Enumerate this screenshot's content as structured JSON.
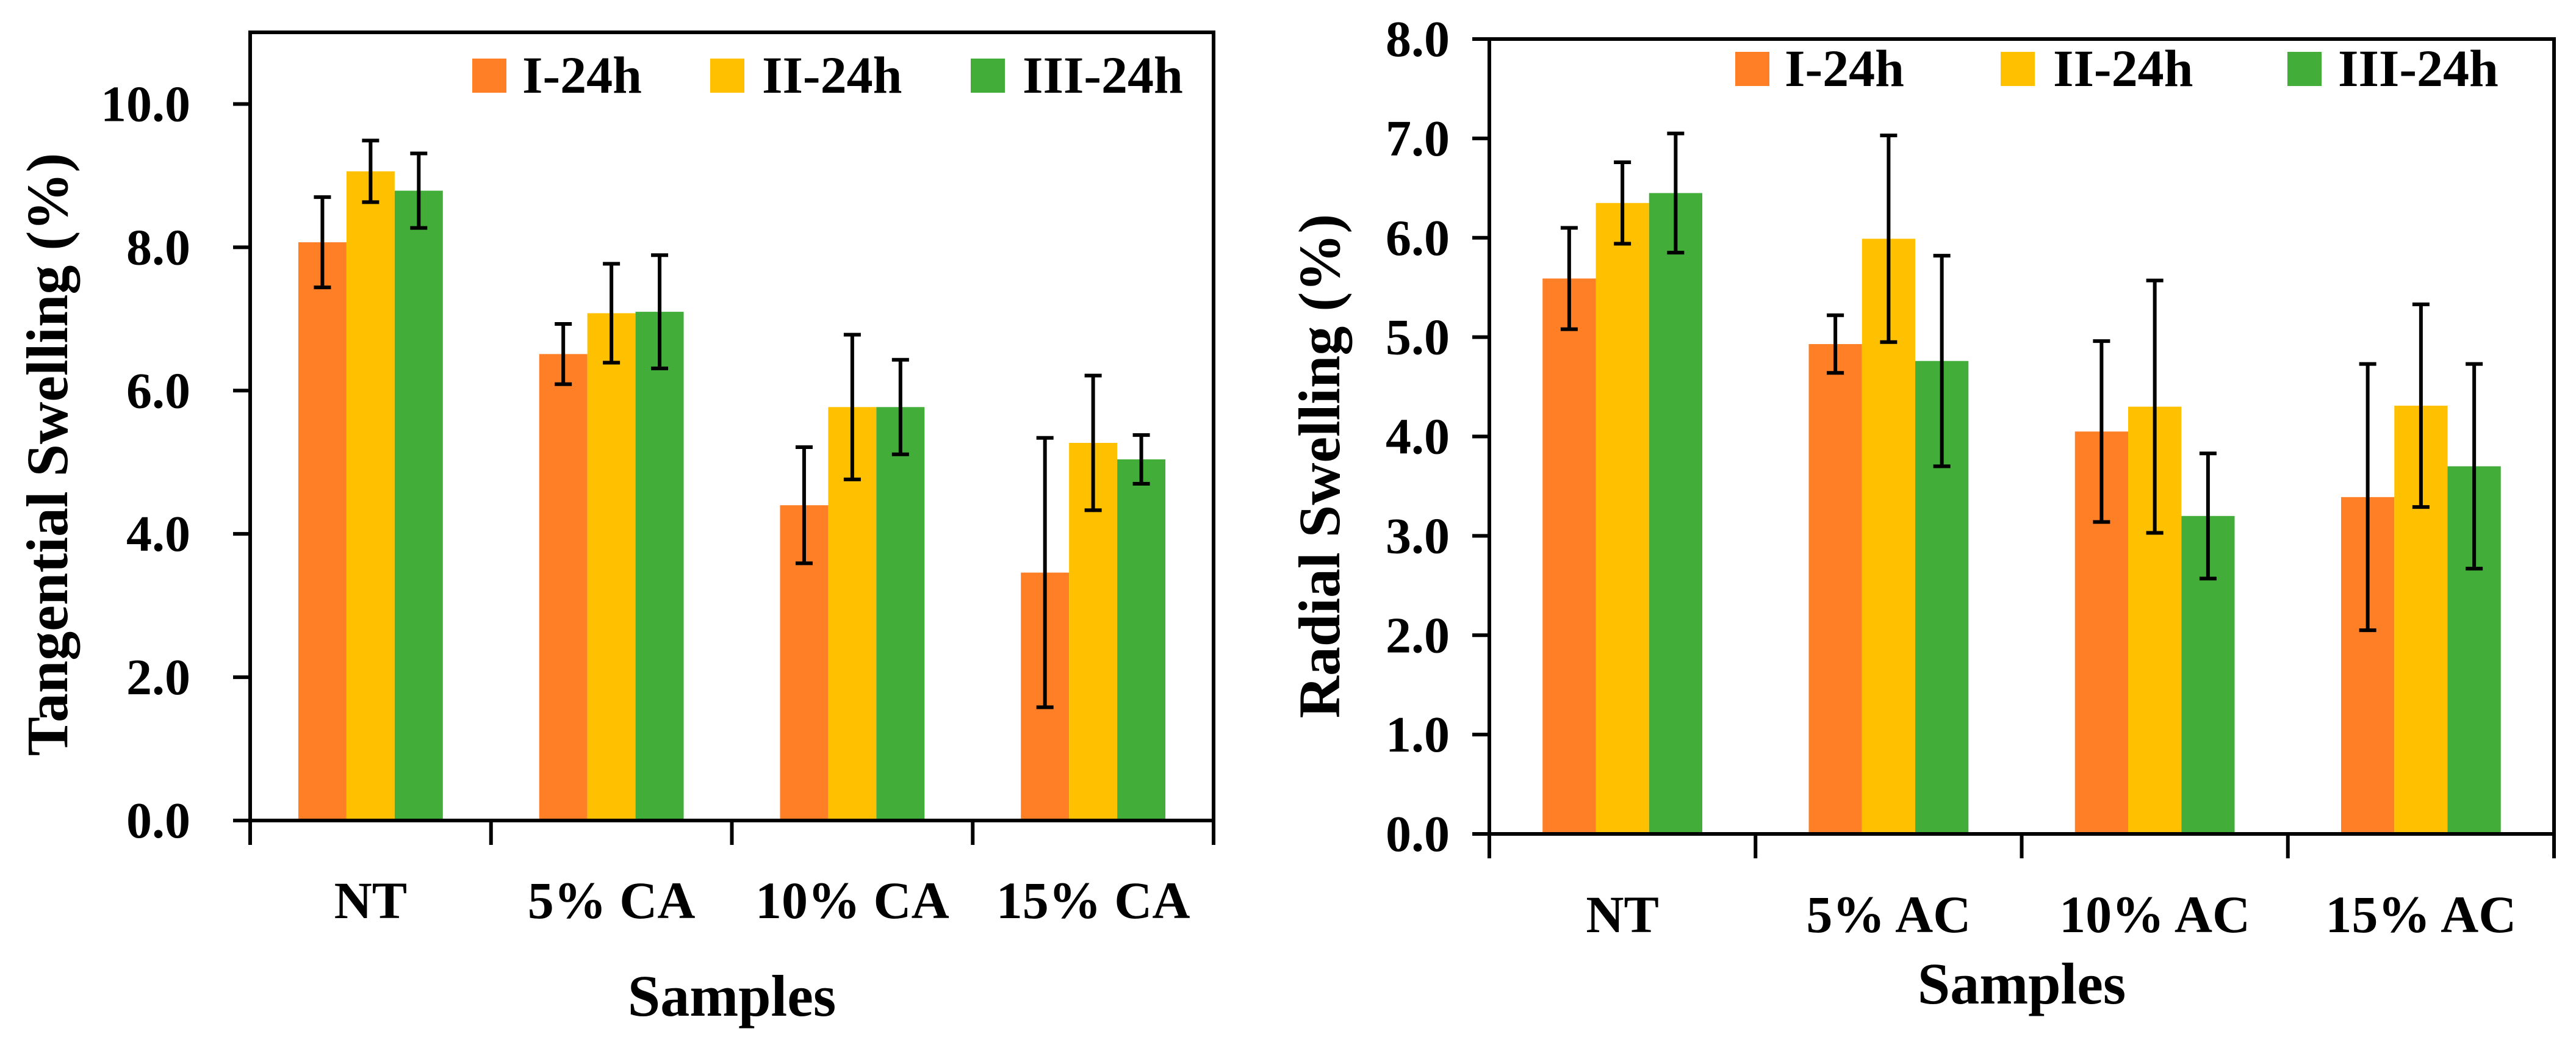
{
  "colors": {
    "I-24h": "#FF7F27",
    "II-24h": "#FFC000",
    "III-24h": "#43AD3A",
    "axis": "#000000"
  },
  "chart_data": [
    {
      "type": "bar",
      "title": "",
      "xlabel": "Samples",
      "ylabel": "Tangential Swelling (%)",
      "ylim": [
        0,
        11
      ],
      "yticks": [
        "0.0",
        "2.0",
        "4.0",
        "6.0",
        "8.0",
        "10.0"
      ],
      "ytick_values": [
        0,
        2,
        4,
        6,
        8,
        10
      ],
      "legend": "top-right",
      "categories": [
        "NT",
        "5% CA",
        "10% CA",
        "15% CA"
      ],
      "series": [
        {
          "name": "I-24h",
          "values": [
            8.07,
            6.51,
            4.4,
            3.46
          ],
          "errors": [
            0.63,
            0.42,
            0.81,
            1.88
          ]
        },
        {
          "name": "II-24h",
          "values": [
            9.06,
            7.08,
            5.77,
            5.27
          ],
          "errors": [
            0.43,
            0.69,
            1.01,
            0.94
          ]
        },
        {
          "name": "III-24h",
          "values": [
            8.79,
            7.1,
            5.77,
            5.04
          ],
          "errors": [
            0.52,
            0.79,
            0.66,
            0.34
          ]
        }
      ]
    },
    {
      "type": "bar",
      "title": "",
      "xlabel": "Samples",
      "ylabel": "Radial Swelling (%)",
      "ylim": [
        0,
        8
      ],
      "yticks": [
        "0.0",
        "1.0",
        "2.0",
        "3.0",
        "4.0",
        "5.0",
        "6.0",
        "7.0",
        "8.0"
      ],
      "ytick_values": [
        0,
        1,
        2,
        3,
        4,
        5,
        6,
        7,
        8
      ],
      "legend": "top-right",
      "categories": [
        "NT",
        "5% AC",
        "10% AC",
        "15% AC"
      ],
      "series": [
        {
          "name": "I-24h",
          "values": [
            5.59,
            4.93,
            4.05,
            3.39
          ],
          "errors": [
            0.51,
            0.29,
            0.91,
            1.34
          ]
        },
        {
          "name": "II-24h",
          "values": [
            6.35,
            5.99,
            4.3,
            4.31
          ],
          "errors": [
            0.41,
            1.04,
            1.27,
            1.02
          ]
        },
        {
          "name": "III-24h",
          "values": [
            6.45,
            4.76,
            3.2,
            3.7
          ],
          "errors": [
            0.6,
            1.06,
            0.63,
            1.03
          ]
        }
      ]
    }
  ]
}
